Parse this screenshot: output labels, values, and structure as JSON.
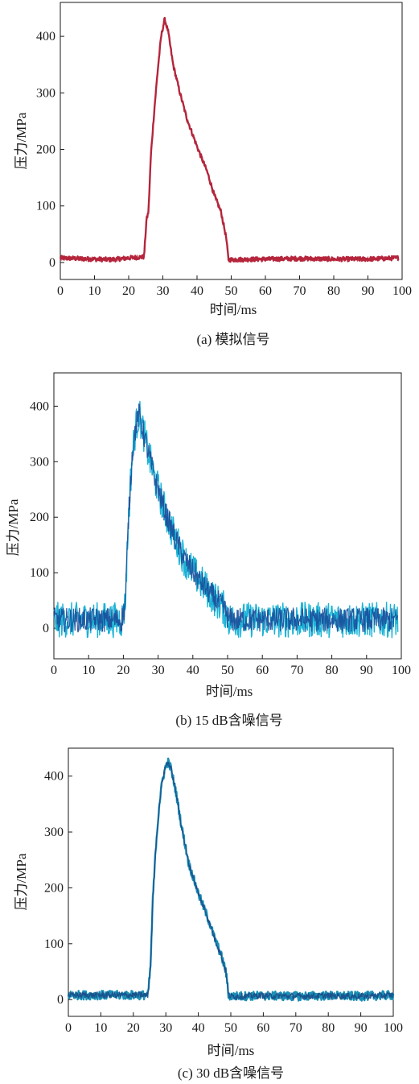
{
  "chart_data": [
    {
      "type": "line",
      "caption": "(a) 模拟信号",
      "xlabel": "时间/ms",
      "ylabel": "压力/MPa",
      "xlim": [
        0,
        100
      ],
      "ylim": [
        -30,
        460
      ],
      "xticks": [
        0,
        10,
        20,
        30,
        40,
        50,
        60,
        70,
        80,
        90,
        100
      ],
      "yticks": [
        0,
        100,
        200,
        300,
        400
      ],
      "grid": false,
      "noise": 4,
      "line_color": "#b5263c",
      "fill_color": "#b5263c",
      "series": [
        {
          "values": [
            [
              0,
              8
            ],
            [
              5,
              7
            ],
            [
              10,
              6
            ],
            [
              15,
              5
            ],
            [
              20,
              8
            ],
            [
              24.5,
              10
            ],
            [
              25.2,
              75
            ],
            [
              25.8,
              90
            ],
            [
              26.5,
              190
            ],
            [
              27.5,
              270
            ],
            [
              28.5,
              340
            ],
            [
              29.5,
              400
            ],
            [
              30.5,
              430
            ],
            [
              31.5,
              410
            ],
            [
              33,
              350
            ],
            [
              35,
              300
            ],
            [
              37,
              255
            ],
            [
              40,
              205
            ],
            [
              43,
              160
            ],
            [
              45,
              120
            ],
            [
              47,
              90
            ],
            [
              48.5,
              45
            ],
            [
              49.2,
              5
            ],
            [
              50,
              5
            ],
            [
              60,
              6
            ],
            [
              70,
              7
            ],
            [
              80,
              6
            ],
            [
              90,
              6
            ],
            [
              99,
              8
            ]
          ]
        }
      ]
    },
    {
      "type": "line",
      "caption": "(b) 15 dB含噪信号",
      "xlabel": "时间/ms",
      "ylabel": "压力/MPa",
      "xlim": [
        0,
        100
      ],
      "ylim": [
        -55,
        460
      ],
      "xticks": [
        0,
        10,
        20,
        30,
        40,
        50,
        60,
        70,
        80,
        90,
        100
      ],
      "yticks": [
        0,
        100,
        200,
        300,
        400
      ],
      "grid": false,
      "noise": 32,
      "line_color": "#1bb3d6",
      "fill_color": "#1a4c9a",
      "series": [
        {
          "values": [
            [
              0,
              15
            ],
            [
              10,
              15
            ],
            [
              19.5,
              15
            ],
            [
              20.5,
              40
            ],
            [
              21.5,
              200
            ],
            [
              22.5,
              310
            ],
            [
              23.5,
              360
            ],
            [
              24.5,
              385
            ],
            [
              25.5,
              360
            ],
            [
              27,
              320
            ],
            [
              29,
              270
            ],
            [
              32,
              210
            ],
            [
              35,
              160
            ],
            [
              38,
              120
            ],
            [
              42,
              85
            ],
            [
              46,
              55
            ],
            [
              49,
              35
            ],
            [
              50.5,
              15
            ],
            [
              60,
              15
            ],
            [
              70,
              15
            ],
            [
              80,
              15
            ],
            [
              90,
              15
            ],
            [
              99,
              15
            ]
          ]
        }
      ]
    },
    {
      "type": "line",
      "caption": "(c) 30 dB含噪信号",
      "xlabel": "时间/ms",
      "ylabel": "压力/MPa",
      "xlim": [
        0,
        100
      ],
      "ylim": [
        -30,
        450
      ],
      "xticks": [
        0,
        10,
        20,
        30,
        40,
        50,
        60,
        70,
        80,
        90,
        100
      ],
      "yticks": [
        0,
        100,
        200,
        300,
        400
      ],
      "grid": false,
      "noise": 8,
      "line_color": "#1b8fb5",
      "fill_color": "#1a4c8a",
      "series": [
        {
          "values": [
            [
              0,
              8
            ],
            [
              10,
              8
            ],
            [
              20,
              8
            ],
            [
              24.5,
              8
            ],
            [
              25.3,
              60
            ],
            [
              26,
              180
            ],
            [
              27,
              280
            ],
            [
              28,
              350
            ],
            [
              29,
              395
            ],
            [
              30,
              418
            ],
            [
              30.7,
              425
            ],
            [
              31.5,
              415
            ],
            [
              33,
              375
            ],
            [
              35,
              305
            ],
            [
              37,
              245
            ],
            [
              40,
              190
            ],
            [
              43,
              145
            ],
            [
              45,
              110
            ],
            [
              47,
              80
            ],
            [
              48.5,
              50
            ],
            [
              49.3,
              8
            ],
            [
              50,
              6
            ],
            [
              60,
              7
            ],
            [
              70,
              6
            ],
            [
              80,
              7
            ],
            [
              90,
              6
            ],
            [
              100,
              8
            ]
          ]
        }
      ]
    }
  ]
}
